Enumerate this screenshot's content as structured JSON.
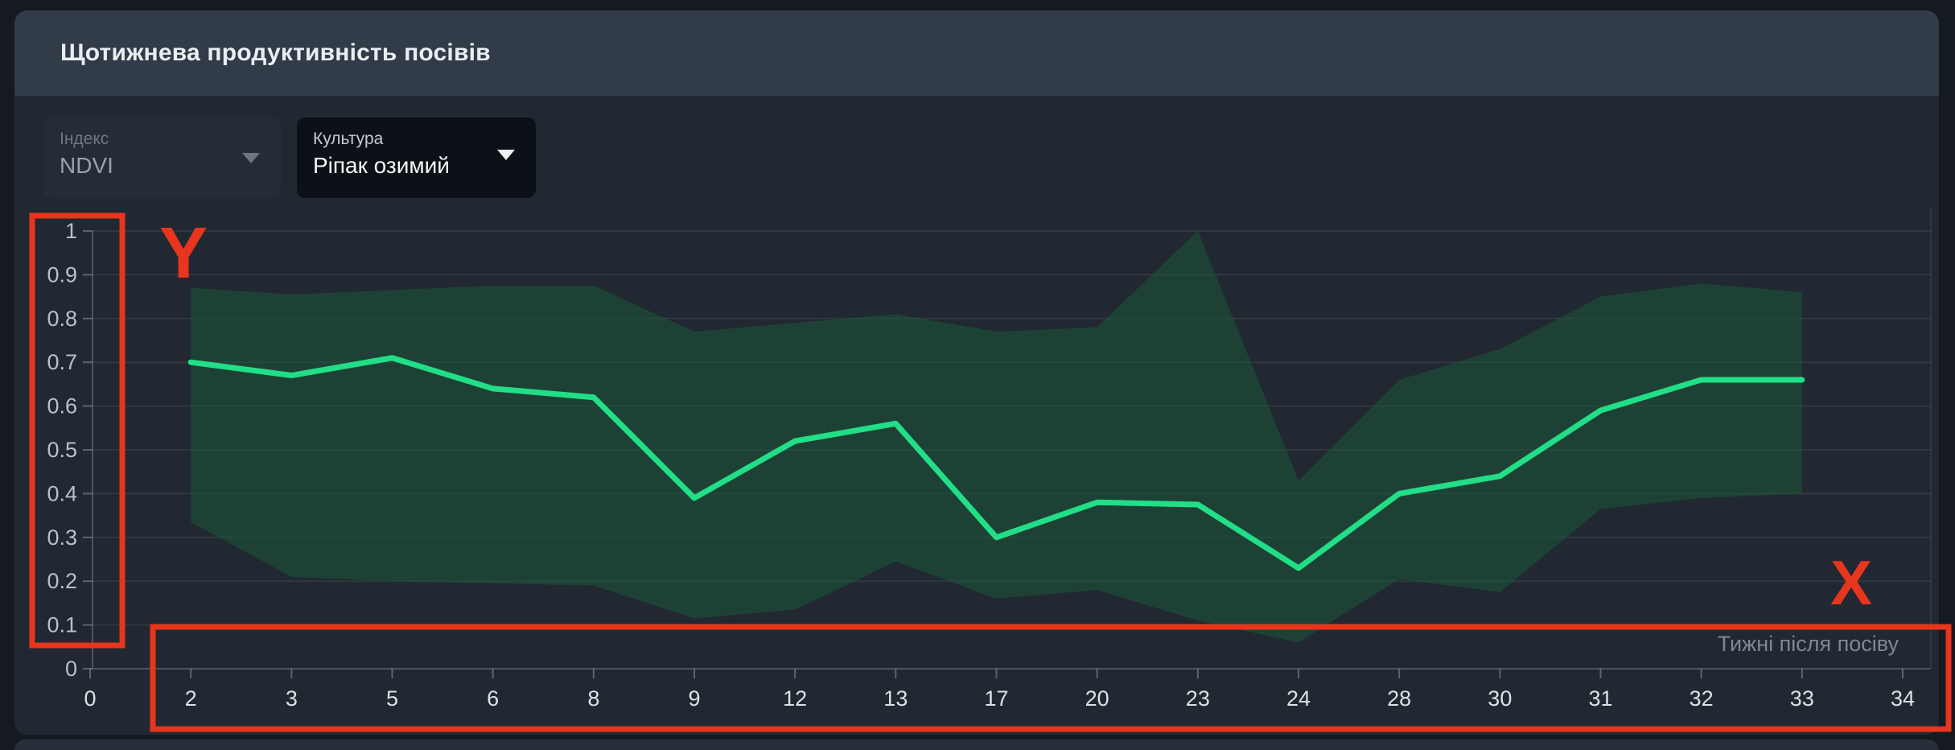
{
  "window": {
    "title": "Щотижнева продуктивність посівів"
  },
  "filters": {
    "index": {
      "label": "Індекс",
      "value": "NDVI",
      "state": "disabled"
    },
    "culture": {
      "label": "Культура",
      "value": "Ріпак озимий",
      "state": "enabled"
    }
  },
  "chart_data": {
    "type": "line",
    "title": "Щотижнева продуктивність посівів",
    "xlabel": "Тижні після посіву",
    "ylabel": "",
    "ylim": [
      0,
      1
    ],
    "yticks": [
      0,
      0.1,
      0.2,
      0.3,
      0.4,
      0.5,
      0.6,
      0.7,
      0.8,
      0.9,
      1
    ],
    "grid": true,
    "legend": "none",
    "categories": [
      0,
      2,
      3,
      5,
      6,
      8,
      9,
      12,
      13,
      17,
      20,
      23,
      24,
      28,
      30,
      31,
      32,
      33,
      34
    ],
    "series": [
      {
        "name": "NDVI",
        "type": "line",
        "color": "#21de87",
        "values": [
          null,
          0.7,
          0.67,
          0.71,
          0.64,
          0.62,
          0.39,
          0.52,
          0.56,
          0.3,
          0.38,
          0.375,
          0.23,
          0.4,
          0.44,
          0.59,
          0.66,
          0.66,
          null
        ]
      },
      {
        "name": "min-max-band",
        "type": "band",
        "color": "rgba(25,91,58,0.5)",
        "upper": [
          null,
          0.87,
          0.855,
          0.865,
          0.875,
          0.875,
          0.77,
          0.79,
          0.81,
          0.77,
          0.78,
          1.0,
          0.43,
          0.66,
          0.73,
          0.85,
          0.88,
          0.86,
          null
        ],
        "lower": [
          null,
          0.335,
          0.21,
          0.2,
          0.195,
          0.19,
          0.115,
          0.135,
          0.245,
          0.16,
          0.18,
          0.11,
          0.06,
          0.205,
          0.175,
          0.365,
          0.39,
          0.4,
          null
        ]
      }
    ]
  },
  "annotations": {
    "y_marker": "Y",
    "x_marker": "X",
    "color": "#e8351d"
  },
  "colors": {
    "page_bg": "#151a21",
    "card_bg": "#212831",
    "header_bg": "#323c48",
    "grid_line": "rgba(255,255,255,0.07)",
    "axis_line": "#4a525e",
    "tick_mark": "rgba(255,255,255,0.28)",
    "y_tick_label": "#b9c0ca",
    "x_tick_label": "#dde1e6",
    "axis_caption": "#7f8796",
    "line": "#21de87",
    "band": "rgba(25,91,58,0.5)"
  }
}
